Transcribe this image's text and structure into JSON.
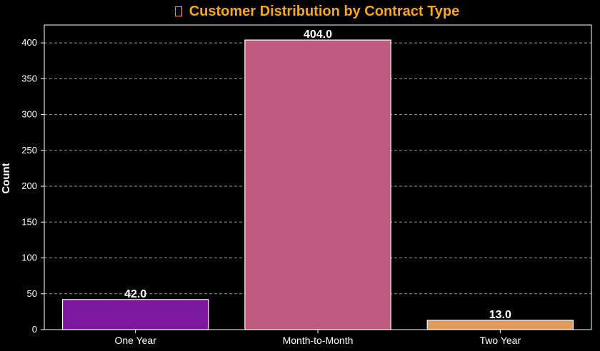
{
  "chart_data": {
    "type": "bar",
    "title": "Customer Distribution by Contract Type",
    "title_icon": "missing-glyph-box",
    "xlabel": "",
    "ylabel": "Count",
    "categories": [
      "One Year",
      "Month-to-Month",
      "Two Year"
    ],
    "values": [
      42.0,
      404.0,
      13.0
    ],
    "value_labels": [
      "42.0",
      "404.0",
      "13.0"
    ],
    "colors": [
      "#7b189e",
      "#bd5a7e",
      "#e19a5a"
    ],
    "ylim": [
      0,
      425
    ],
    "yticks": [
      0,
      50,
      100,
      150,
      200,
      250,
      300,
      350,
      400
    ],
    "ytick_labels": [
      "0",
      "50",
      "100",
      "150",
      "200",
      "250",
      "300",
      "350",
      "400"
    ],
    "grid": "horizontal dashed",
    "background": "#000000",
    "title_color": "#f5a623",
    "text_color": "#ffffff"
  }
}
